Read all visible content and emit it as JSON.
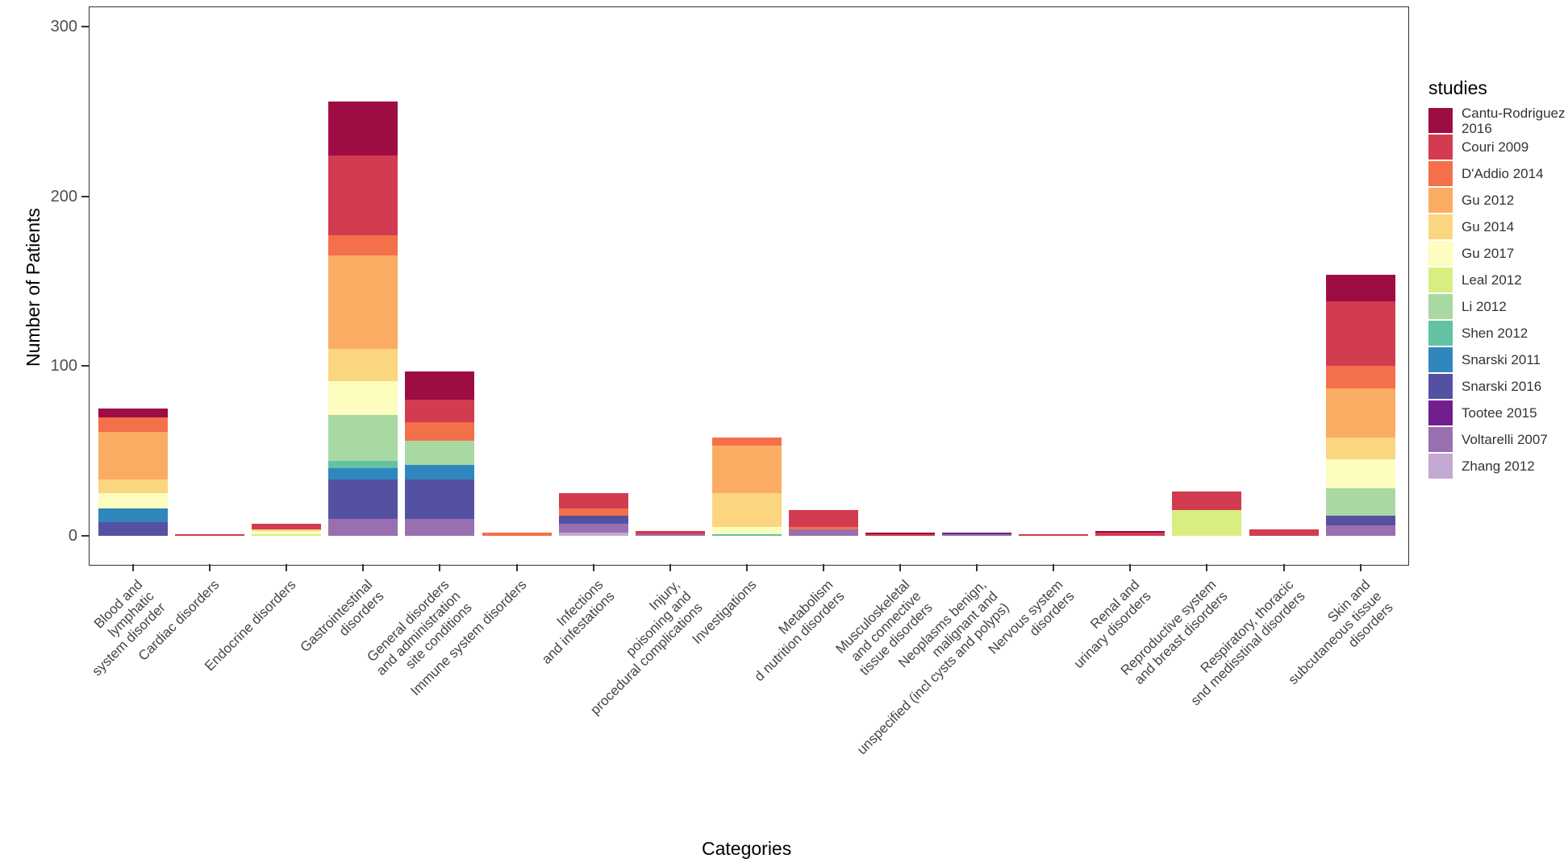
{
  "chart_data": {
    "type": "bar",
    "subtype": "stacked",
    "title": "",
    "xlabel": "Categories",
    "ylabel": "Number of Patients",
    "y_ticks": [
      0,
      100,
      200,
      300
    ],
    "ylim": [
      0,
      310
    ],
    "grid": "off",
    "legend_position": "right",
    "legend_title": "studies",
    "stack_order": "segments listed top-to-bottom (alphabetical by study from top)",
    "studies": [
      {
        "name": "Cantu-Rodriguez 2016",
        "color": "#9E0C44"
      },
      {
        "name": "Couri 2009",
        "color": "#D23B50"
      },
      {
        "name": "D'Addio 2014",
        "color": "#F3704A"
      },
      {
        "name": "Gu 2012",
        "color": "#FBAC63"
      },
      {
        "name": "Gu 2014",
        "color": "#FBD57F"
      },
      {
        "name": "Gu 2017",
        "color": "#FCFDBE"
      },
      {
        "name": "Leal 2012",
        "color": "#D8EE81"
      },
      {
        "name": "Li 2012",
        "color": "#A8D9A2"
      },
      {
        "name": "Shen 2012",
        "color": "#63C2A4"
      },
      {
        "name": "Snarski 2011",
        "color": "#2F87BE"
      },
      {
        "name": "Snarski 2016",
        "color": "#5551A2"
      },
      {
        "name": "Tootee 2015",
        "color": "#711F8E"
      },
      {
        "name": "Voltarelli 2007",
        "color": "#9A6FB0"
      },
      {
        "name": "Zhang 2012",
        "color": "#C3A8D1"
      }
    ],
    "categories": [
      {
        "label": "Blood and\nlymphatic\nsystem disorder",
        "segments": [
          {
            "study": "Cantu-Rodriguez 2016",
            "value": 5
          },
          {
            "study": "D'Addio 2014",
            "value": 9
          },
          {
            "study": "Gu 2012",
            "value": 28
          },
          {
            "study": "Gu 2014",
            "value": 8
          },
          {
            "study": "Gu 2017",
            "value": 9
          },
          {
            "study": "Snarski 2011",
            "value": 8
          },
          {
            "study": "Snarski 2016",
            "value": 8
          }
        ]
      },
      {
        "label": "Cardiac disorders",
        "segments": [
          {
            "study": "Couri 2009",
            "value": 1
          }
        ]
      },
      {
        "label": "Endocrine disorders",
        "segments": [
          {
            "study": "Couri 2009",
            "value": 3
          },
          {
            "study": "Gu 2014",
            "value": 1
          },
          {
            "study": "Gu 2017",
            "value": 2
          },
          {
            "study": "Leal 2012",
            "value": 1
          }
        ]
      },
      {
        "label": "Gastrointestinal\ndisorders",
        "segments": [
          {
            "study": "Cantu-Rodriguez 2016",
            "value": 32
          },
          {
            "study": "Couri 2009",
            "value": 47
          },
          {
            "study": "D'Addio 2014",
            "value": 12
          },
          {
            "study": "Gu 2012",
            "value": 55
          },
          {
            "study": "Gu 2014",
            "value": 19
          },
          {
            "study": "Gu 2017",
            "value": 20
          },
          {
            "study": "Li 2012",
            "value": 27
          },
          {
            "study": "Shen 2012",
            "value": 4
          },
          {
            "study": "Snarski 2011",
            "value": 7
          },
          {
            "study": "Snarski 2016",
            "value": 23
          },
          {
            "study": "Voltarelli 2007",
            "value": 10
          }
        ]
      },
      {
        "label": "General disorders\nand administration\nsite conditions",
        "segments": [
          {
            "study": "Cantu-Rodriguez 2016",
            "value": 17
          },
          {
            "study": "Couri 2009",
            "value": 13
          },
          {
            "study": "D'Addio 2014",
            "value": 11
          },
          {
            "study": "Li 2012",
            "value": 14
          },
          {
            "study": "Snarski 2011",
            "value": 9
          },
          {
            "study": "Snarski 2016",
            "value": 23
          },
          {
            "study": "Voltarelli 2007",
            "value": 10
          }
        ]
      },
      {
        "label": "Immune system disorders",
        "segments": [
          {
            "study": "D'Addio 2014",
            "value": 2
          }
        ]
      },
      {
        "label": "Infections\nand infestations",
        "segments": [
          {
            "study": "Couri 2009",
            "value": 9
          },
          {
            "study": "D'Addio 2014",
            "value": 4
          },
          {
            "study": "Snarski 2016",
            "value": 5
          },
          {
            "study": "Voltarelli 2007",
            "value": 5
          },
          {
            "study": "Zhang 2012",
            "value": 2
          }
        ]
      },
      {
        "label": "Injury,\npoisoning and\nprocedural complications",
        "segments": [
          {
            "study": "Couri 2009",
            "value": 2
          },
          {
            "study": "Voltarelli 2007",
            "value": 1
          }
        ]
      },
      {
        "label": "Investigations",
        "segments": [
          {
            "study": "D'Addio 2014",
            "value": 5
          },
          {
            "study": "Gu 2012",
            "value": 28
          },
          {
            "study": "Gu 2014",
            "value": 20
          },
          {
            "study": "Gu 2017",
            "value": 4
          },
          {
            "study": "Shen 2012",
            "value": 1
          }
        ]
      },
      {
        "label": "Metabolism\nd nutrition disorders",
        "segments": [
          {
            "study": "Couri 2009",
            "value": 10
          },
          {
            "study": "D'Addio 2014",
            "value": 1
          },
          {
            "study": "Voltarelli 2007",
            "value": 4
          }
        ]
      },
      {
        "label": "Musculoskeletal\nand connective\ntissue disorders",
        "segments": [
          {
            "study": "Cantu-Rodriguez 2016",
            "value": 1
          },
          {
            "study": "Couri 2009",
            "value": 1
          }
        ]
      },
      {
        "label": "Neoplasms benign,\nmalignant and\nunspecified (incl cysts and polyps)",
        "segments": [
          {
            "study": "Tootee 2015",
            "value": 1
          },
          {
            "study": "Voltarelli 2007",
            "value": 1
          }
        ]
      },
      {
        "label": "Nervous system\ndisorders",
        "segments": [
          {
            "study": "Couri 2009",
            "value": 1
          }
        ]
      },
      {
        "label": "Renal and\nurinary disorders",
        "segments": [
          {
            "study": "Cantu-Rodriguez 2016",
            "value": 1
          },
          {
            "study": "Couri 2009",
            "value": 2
          }
        ]
      },
      {
        "label": "Reproductive system\nand breast disorders",
        "segments": [
          {
            "study": "Couri 2009",
            "value": 11
          },
          {
            "study": "Leal 2012",
            "value": 15
          }
        ]
      },
      {
        "label": "Respiratory, thoracic\nsnd medisstinal disorders",
        "segments": [
          {
            "study": "Couri 2009",
            "value": 4
          }
        ]
      },
      {
        "label": "Skin and\nsubcutaneous tissue\ndisorders",
        "segments": [
          {
            "study": "Cantu-Rodriguez 2016",
            "value": 16
          },
          {
            "study": "Couri 2009",
            "value": 38
          },
          {
            "study": "D'Addio 2014",
            "value": 13
          },
          {
            "study": "Gu 2012",
            "value": 29
          },
          {
            "study": "Gu 2014",
            "value": 13
          },
          {
            "study": "Gu 2017",
            "value": 17
          },
          {
            "study": "Li 2012",
            "value": 16
          },
          {
            "study": "Snarski 2016",
            "value": 6
          },
          {
            "study": "Voltarelli 2007",
            "value": 6
          }
        ]
      }
    ]
  }
}
